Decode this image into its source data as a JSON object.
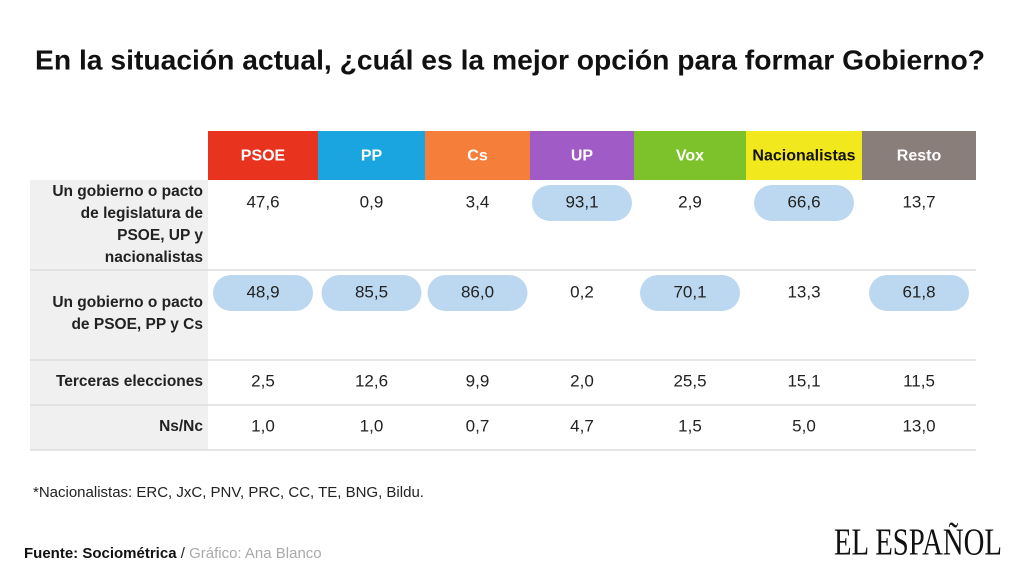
{
  "title": "En la situación actual, ¿cuál es la mejor opción para formar Gobierno?",
  "table": {
    "columns": [
      {
        "label": "PSOE",
        "color": "#e8331f",
        "text_color": "#ffffff"
      },
      {
        "label": "PP",
        "color": "#1ba5e0",
        "text_color": "#ffffff"
      },
      {
        "label": "Cs",
        "color": "#f57f3a",
        "text_color": "#ffffff"
      },
      {
        "label": "UP",
        "color": "#a05bc6",
        "text_color": "#ffffff"
      },
      {
        "label": "Vox",
        "color": "#7dc22a",
        "text_color": "#ffffff"
      },
      {
        "label": "Nacionalistas",
        "color": "#f2e81e",
        "text_color": "#111111"
      },
      {
        "label": "Resto",
        "color": "#8a7e7b",
        "text_color": "#ffffff"
      }
    ],
    "highlight_color": "#bcd8f0",
    "rows": [
      {
        "label": [
          "Un gobierno o pacto",
          "de legislatura de",
          "PSOE, UP y",
          "nacionalistas"
        ],
        "cells": [
          {
            "text": "47,6",
            "highlight": false
          },
          {
            "text": "0,9",
            "highlight": false
          },
          {
            "text": "3,4",
            "highlight": false
          },
          {
            "text": "93,1",
            "highlight": true
          },
          {
            "text": "2,9",
            "highlight": false
          },
          {
            "text": "66,6",
            "highlight": true
          },
          {
            "text": "13,7",
            "highlight": false
          }
        ]
      },
      {
        "label": [
          "Un gobierno o pacto",
          "de  PSOE, PP y Cs"
        ],
        "cells": [
          {
            "text": "48,9",
            "highlight": true
          },
          {
            "text": "85,5",
            "highlight": true
          },
          {
            "text": "86,0",
            "highlight": true
          },
          {
            "text": "0,2",
            "highlight": false
          },
          {
            "text": "70,1",
            "highlight": true
          },
          {
            "text": "13,3",
            "highlight": false
          },
          {
            "text": "61,8",
            "highlight": true
          }
        ]
      },
      {
        "label": [
          "Terceras elecciones"
        ],
        "cells": [
          {
            "text": "2,5",
            "highlight": false
          },
          {
            "text": "12,6",
            "highlight": false
          },
          {
            "text": "9,9",
            "highlight": false
          },
          {
            "text": "2,0",
            "highlight": false
          },
          {
            "text": "25,5",
            "highlight": false
          },
          {
            "text": "15,1",
            "highlight": false
          },
          {
            "text": "11,5",
            "highlight": false
          }
        ]
      },
      {
        "label": [
          "Ns/Nc"
        ],
        "cells": [
          {
            "text": "1,0",
            "highlight": false
          },
          {
            "text": "1,0",
            "highlight": false
          },
          {
            "text": "0,7",
            "highlight": false
          },
          {
            "text": "4,7",
            "highlight": false
          },
          {
            "text": "1,5",
            "highlight": false
          },
          {
            "text": "5,0",
            "highlight": false
          },
          {
            "text": "13,0",
            "highlight": false
          }
        ]
      }
    ]
  },
  "footnote": "*Nacionalistas: ERC, JxC, PNV, PRC, CC, TE, BNG, Bildu.",
  "source": {
    "label": "Fuente: Sociométrica",
    "separator": "/",
    "credit": "Gráfico: Ana Blanco"
  },
  "logo": "EL ESPAÑOL"
}
